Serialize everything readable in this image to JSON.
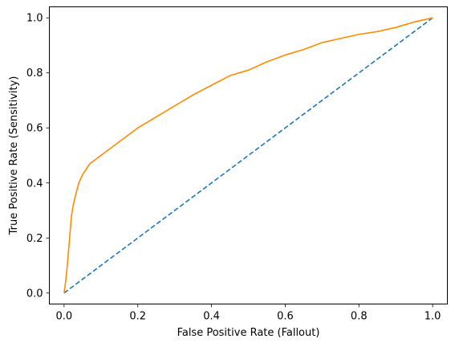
{
  "chart_data": {
    "type": "line",
    "title": "",
    "xlabel": "False Positive Rate (Fallout)",
    "ylabel": "True Positive Rate (Sensitivity)",
    "xlim": [
      -0.04,
      1.04
    ],
    "ylim": [
      -0.04,
      1.04
    ],
    "xticks": [
      0.0,
      0.2,
      0.4,
      0.6,
      0.8,
      1.0
    ],
    "yticks": [
      0.0,
      0.2,
      0.4,
      0.6,
      0.8,
      1.0
    ],
    "xtick_labels": [
      "0.0",
      "0.2",
      "0.4",
      "0.6",
      "0.8",
      "1.0"
    ],
    "ytick_labels": [
      "0.0",
      "0.2",
      "0.4",
      "0.6",
      "0.8",
      "1.0"
    ],
    "grid": false,
    "legend": "none",
    "series": [
      {
        "style": "solid",
        "color": "#ff8c00",
        "x": [
          0.0,
          0.005,
          0.01,
          0.015,
          0.02,
          0.025,
          0.03,
          0.04,
          0.05,
          0.06,
          0.07,
          0.08,
          0.1,
          0.12,
          0.15,
          0.18,
          0.2,
          0.25,
          0.3,
          0.35,
          0.4,
          0.45,
          0.5,
          0.55,
          0.6,
          0.65,
          0.7,
          0.75,
          0.8,
          0.85,
          0.9,
          0.95,
          1.0
        ],
        "y": [
          0.0,
          0.05,
          0.12,
          0.2,
          0.28,
          0.32,
          0.35,
          0.4,
          0.43,
          0.45,
          0.47,
          0.48,
          0.5,
          0.52,
          0.55,
          0.58,
          0.6,
          0.64,
          0.68,
          0.72,
          0.755,
          0.79,
          0.81,
          0.84,
          0.865,
          0.885,
          0.91,
          0.925,
          0.94,
          0.95,
          0.965,
          0.985,
          1.0
        ]
      },
      {
        "style": "dashed",
        "color": "#1f77b4",
        "x": [
          0.0,
          1.0
        ],
        "y": [
          0.0,
          1.0
        ]
      }
    ]
  }
}
